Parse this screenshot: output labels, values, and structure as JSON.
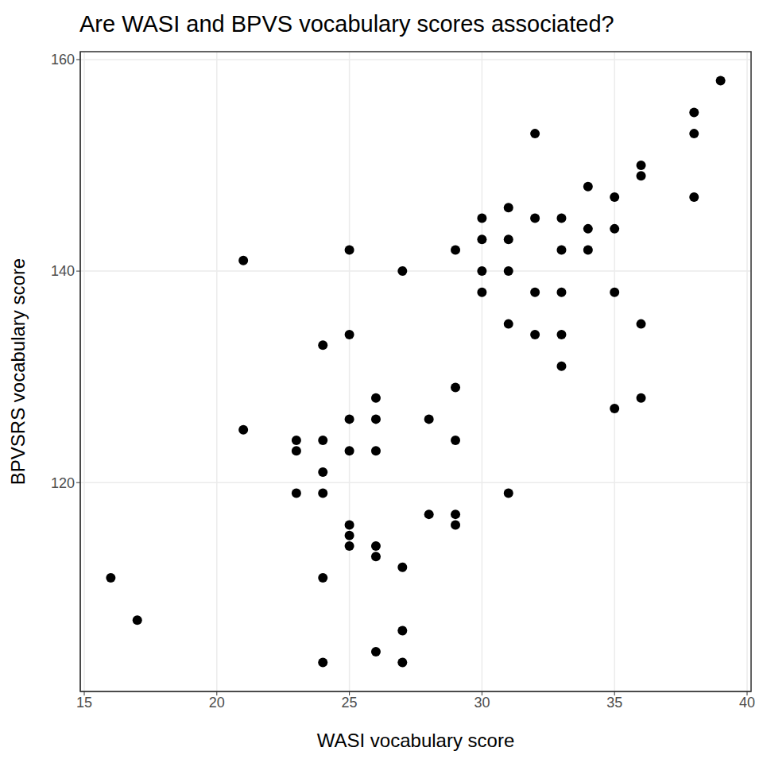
{
  "chart_data": {
    "type": "scatter",
    "title": "Are WASI and BPVS vocabulary scores associated?",
    "x_label": "WASI vocabulary score",
    "y_label": "BPVSRS vocabulary score",
    "x": [
      16,
      17,
      21,
      21,
      23,
      23,
      23,
      24,
      24,
      24,
      24,
      24,
      24,
      25,
      25,
      25,
      25,
      25,
      25,
      25,
      26,
      26,
      26,
      26,
      26,
      26,
      27,
      27,
      27,
      27,
      28,
      28,
      29,
      29,
      29,
      29,
      29,
      30,
      30,
      30,
      30,
      31,
      31,
      31,
      31,
      31,
      32,
      32,
      32,
      32,
      33,
      33,
      33,
      33,
      33,
      34,
      34,
      34,
      35,
      35,
      35,
      35,
      36,
      36,
      36,
      36,
      38,
      38,
      38,
      39
    ],
    "values": [
      111,
      107,
      141,
      125,
      124,
      123,
      119,
      133,
      124,
      121,
      119,
      111,
      103,
      142,
      134,
      126,
      123,
      116,
      115,
      114,
      128,
      126,
      123,
      114,
      113,
      104,
      140,
      112,
      106,
      103,
      126,
      117,
      142,
      129,
      124,
      117,
      116,
      145,
      143,
      140,
      138,
      146,
      143,
      140,
      135,
      119,
      153,
      145,
      138,
      134,
      145,
      142,
      138,
      134,
      131,
      148,
      144,
      142,
      147,
      144,
      138,
      127,
      150,
      149,
      135,
      128,
      155,
      153,
      147,
      158
    ],
    "color": "#000000",
    "marker": "circle",
    "xlim": [
      14.85,
      40.15
    ],
    "ylim": [
      100.25,
      160.75
    ],
    "xticks": [
      15,
      20,
      25,
      30,
      35,
      40
    ],
    "yticks": [
      120,
      140,
      160
    ],
    "grid": true
  }
}
